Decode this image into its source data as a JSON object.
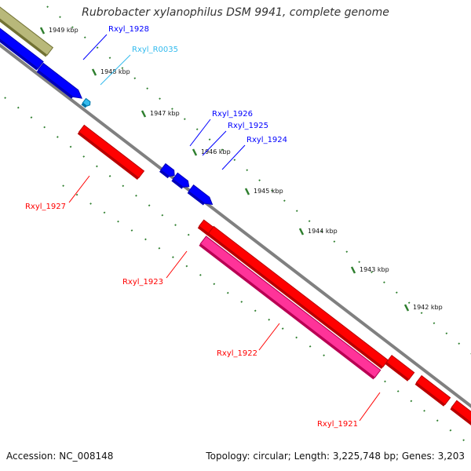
{
  "title": "Rubrobacter xylanophilus DSM 9941, complete genome",
  "footer": {
    "accession": "Accession: NC_008148",
    "summary": "Topology: circular; Length: 3,225,748 bp; Genes: 3,203"
  },
  "colors": {
    "backbone": "#808080",
    "forward_gene": "#0000ff",
    "reverse_gene": "#ff0000",
    "rna": "#33bbee",
    "pseudo": "#ff3399",
    "other": "#b8b87a",
    "tick": "#2f7f2f"
  },
  "scale": {
    "ticks": [
      {
        "label": "1949 kbp",
        "pos": 1949
      },
      {
        "label": "1948 kbp",
        "pos": 1948
      },
      {
        "label": "1947 kbp",
        "pos": 1947
      },
      {
        "label": "1946 kbp",
        "pos": 1946
      },
      {
        "label": "1945 kbp",
        "pos": 1945
      },
      {
        "label": "1944 kbp",
        "pos": 1944
      },
      {
        "label": "1943 kbp",
        "pos": 1943
      },
      {
        "label": "1942 kbp",
        "pos": 1942
      }
    ]
  },
  "genes": [
    {
      "id": "Rxyl_1928",
      "label": "Rxyl_1928",
      "strand": "forward",
      "color": "#0000ff"
    },
    {
      "id": "Rxyl_R0035",
      "label": "Rxyl_R0035",
      "strand": "forward",
      "color": "#33bbee"
    },
    {
      "id": "Rxyl_1926",
      "label": "Rxyl_1926",
      "strand": "forward",
      "color": "#0000ff"
    },
    {
      "id": "Rxyl_1925",
      "label": "Rxyl_1925",
      "strand": "forward",
      "color": "#0000ff"
    },
    {
      "id": "Rxyl_1924",
      "label": "Rxyl_1924",
      "strand": "forward",
      "color": "#0000ff"
    },
    {
      "id": "Rxyl_1927",
      "label": "Rxyl_1927",
      "strand": "reverse",
      "color": "#ff0000"
    },
    {
      "id": "Rxyl_1923",
      "label": "Rxyl_1923",
      "strand": "reverse",
      "color": "#ff0000"
    },
    {
      "id": "Rxyl_1922",
      "label": "Rxyl_1922",
      "strand": "reverse",
      "color": "#ff0000"
    },
    {
      "id": "Rxyl_1921",
      "label": "Rxyl_1921",
      "strand": "reverse",
      "color": "#ff0000"
    }
  ]
}
